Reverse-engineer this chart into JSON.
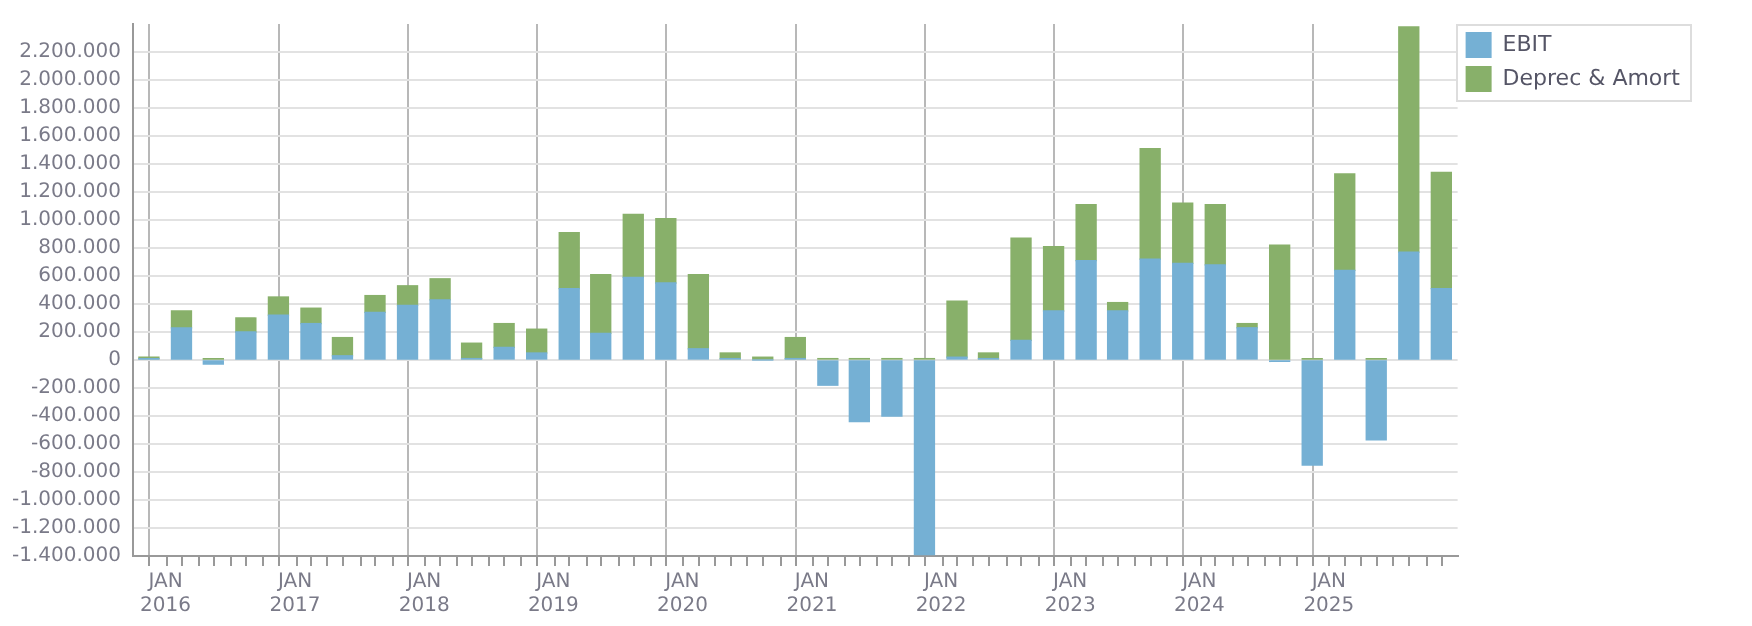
{
  "chart_data": {
    "type": "bar",
    "stacked": true,
    "x": [
      "2015-11-15",
      "2016-02-15",
      "2016-05-15",
      "2016-08-15",
      "2016-11-15",
      "2017-02-15",
      "2017-05-15",
      "2017-08-15",
      "2017-11-15",
      "2018-02-15",
      "2018-05-15",
      "2018-08-15",
      "2018-11-15",
      "2019-02-15",
      "2019-05-15",
      "2019-08-15",
      "2019-11-15",
      "2020-02-15",
      "2020-05-15",
      "2020-08-15",
      "2020-11-15",
      "2021-02-15",
      "2021-05-15",
      "2021-08-15",
      "2021-11-15",
      "2022-02-15",
      "2022-05-15",
      "2022-08-15",
      "2022-11-15",
      "2023-02-15",
      "2023-05-15",
      "2023-08-15",
      "2023-11-15",
      "2024-02-15",
      "2024-05-15",
      "2024-08-15",
      "2024-11-15",
      "2025-02-15",
      "2025-05-15",
      "2025-08-15",
      "2025-11-15"
    ],
    "series": [
      {
        "name": "EBIT",
        "color": "#75b0d4",
        "values": [
          10000,
          230000,
          -30000,
          200000,
          320000,
          260000,
          30000,
          340000,
          390000,
          430000,
          10000,
          90000,
          50000,
          510000,
          190000,
          590000,
          550000,
          80000,
          10000,
          0,
          10000,
          -180000,
          -440000,
          -400000,
          -1390000,
          20000,
          10000,
          140000,
          350000,
          710000,
          350000,
          720000,
          690000,
          680000,
          230000,
          -10000,
          -750000,
          640000,
          -570000,
          770000,
          510000
        ]
      },
      {
        "name": "Deprec & Amort",
        "color": "#88b06a",
        "values": [
          10000,
          120000,
          10000,
          100000,
          130000,
          110000,
          130000,
          120000,
          140000,
          150000,
          110000,
          170000,
          170000,
          400000,
          420000,
          450000,
          460000,
          530000,
          40000,
          20000,
          150000,
          10000,
          10000,
          10000,
          10000,
          400000,
          40000,
          730000,
          460000,
          400000,
          60000,
          790000,
          430000,
          430000,
          30000,
          820000,
          10000,
          690000,
          10000,
          1610000,
          830000
        ]
      }
    ],
    "xlim": [
      "2015-10-01",
      "2025-12-31"
    ],
    "xticks": [
      {
        "value": "2016-01-01",
        "label": "JAN 2016"
      },
      {
        "value": "2016-04-01",
        "label": null
      },
      {
        "value": "2016-07-01",
        "label": null
      },
      {
        "value": "2016-10-01",
        "label": null
      },
      {
        "value": "2017-01-01",
        "label": "JAN 2017"
      },
      {
        "value": "2017-04-01",
        "label": null
      },
      {
        "value": "2017-07-01",
        "label": null
      },
      {
        "value": "2017-10-01",
        "label": null
      },
      {
        "value": "2018-01-01",
        "label": "JAN 2018"
      },
      {
        "value": "2018-04-01",
        "label": null
      },
      {
        "value": "2018-07-01",
        "label": null
      },
      {
        "value": "2018-10-01",
        "label": null
      },
      {
        "value": "2019-01-01",
        "label": "JAN 2019"
      },
      {
        "value": "2019-04-01",
        "label": null
      },
      {
        "value": "2019-07-01",
        "label": null
      },
      {
        "value": "2019-10-01",
        "label": null
      },
      {
        "value": "2020-01-01",
        "label": "JAN 2020"
      },
      {
        "value": "2020-04-01",
        "label": null
      },
      {
        "value": "2020-07-01",
        "label": null
      },
      {
        "value": "2020-10-01",
        "label": null
      },
      {
        "value": "2021-01-01",
        "label": "JAN 2021"
      },
      {
        "value": "2021-04-01",
        "label": null
      },
      {
        "value": "2021-07-01",
        "label": null
      },
      {
        "value": "2021-10-01",
        "label": null
      },
      {
        "value": "2022-01-01",
        "label": "JAN 2022"
      },
      {
        "value": "2022-04-01",
        "label": null
      },
      {
        "value": "2022-07-01",
        "label": null
      },
      {
        "value": "2022-10-01",
        "label": null
      },
      {
        "value": "2023-01-01",
        "label": "JAN 2023"
      },
      {
        "value": "2023-04-01",
        "label": null
      },
      {
        "value": "2023-07-01",
        "label": null
      },
      {
        "value": "2023-10-01",
        "label": null
      },
      {
        "value": "2024-01-01",
        "label": "JAN 2024"
      },
      {
        "value": "2024-04-01",
        "label": null
      },
      {
        "value": "2024-07-01",
        "label": null
      },
      {
        "value": "2024-10-01",
        "label": null
      },
      {
        "value": "2025-01-01",
        "label": "JAN 2025"
      },
      {
        "value": "2025-04-01",
        "label": null
      },
      {
        "value": "2025-07-01",
        "label": null
      },
      {
        "value": "2025-10-01",
        "label": null
      }
    ],
    "ylim": [
      -1400000,
      2400000
    ],
    "yticks": [
      {
        "value": -1400000,
        "label": "-1.400.000"
      },
      {
        "value": -1200000,
        "label": "-1.200.000"
      },
      {
        "value": -1000000,
        "label": "-1.000.000"
      },
      {
        "value": -800000,
        "label": "-800.000"
      },
      {
        "value": -600000,
        "label": "-600.000"
      },
      {
        "value": -400000,
        "label": "-400.000"
      },
      {
        "value": -200000,
        "label": "-200.000"
      },
      {
        "value": 0,
        "label": "0"
      },
      {
        "value": 200000,
        "label": "200.000"
      },
      {
        "value": 400000,
        "label": "400.000"
      },
      {
        "value": 600000,
        "label": "600.000"
      },
      {
        "value": 800000,
        "label": "800.000"
      },
      {
        "value": 1000000,
        "label": "1.000.000"
      },
      {
        "value": 1200000,
        "label": "1.200.000"
      },
      {
        "value": 1400000,
        "label": "1.400.000"
      },
      {
        "value": 1600000,
        "label": "1.600.000"
      },
      {
        "value": 1800000,
        "label": "1.800.000"
      },
      {
        "value": 2000000,
        "label": "2.000.000"
      },
      {
        "value": 2200000,
        "label": "2.200.000"
      }
    ],
    "grid": true,
    "legend": "top right"
  }
}
